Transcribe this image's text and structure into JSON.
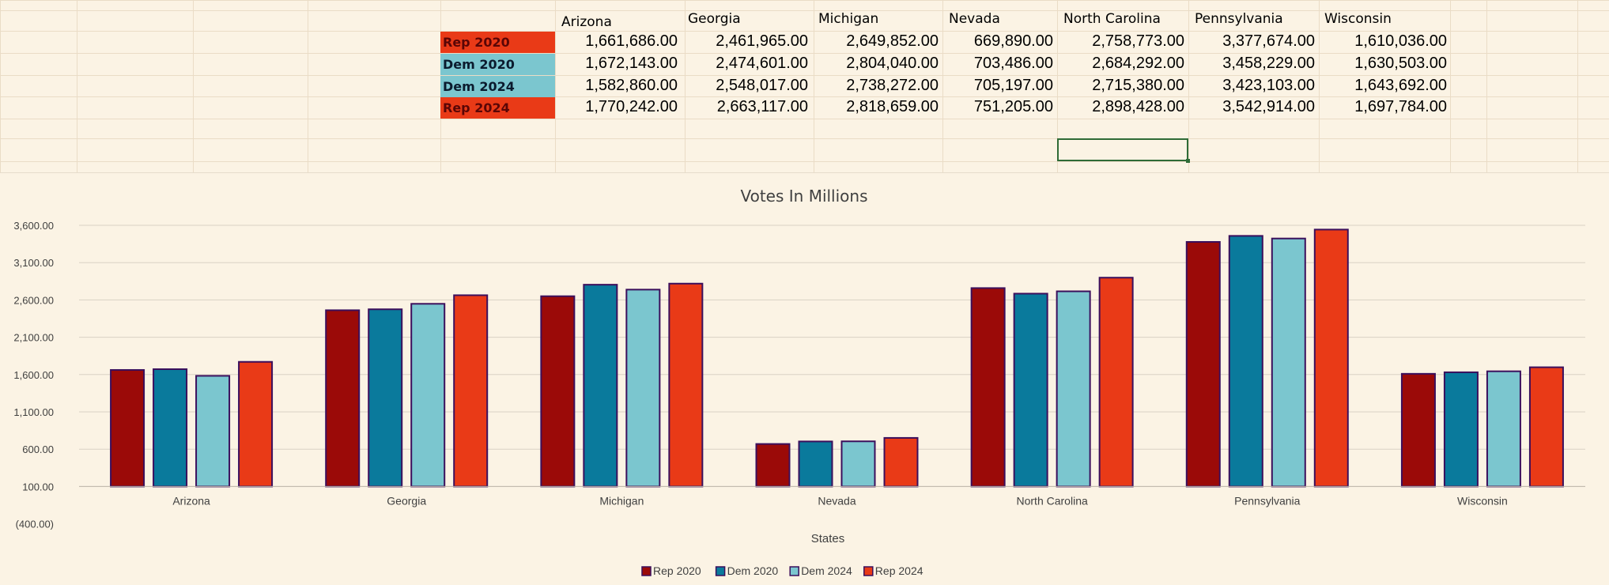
{
  "sheet": {
    "headers": [
      "Arizona",
      "Georgia",
      "Michigan",
      "Nevada",
      "North Carolina",
      "Pennsylvania",
      "Wisconsin"
    ],
    "rows": [
      {
        "label": "Rep 2020",
        "values": [
          "1,661,686.00",
          "2,461,965.00",
          "2,649,852.00",
          "669,890.00",
          "2,758,773.00",
          "3,377,674.00",
          "1,610,036.00"
        ]
      },
      {
        "label": "Dem 2020",
        "values": [
          "1,672,143.00",
          "2,474,601.00",
          "2,804,040.00",
          "703,486.00",
          "2,684,292.00",
          "3,458,229.00",
          "1,630,503.00"
        ]
      },
      {
        "label": "Dem 2024",
        "values": [
          "1,582,860.00",
          "2,548,017.00",
          "2,738,272.00",
          "705,197.00",
          "2,715,380.00",
          "3,423,103.00",
          "1,643,692.00"
        ]
      },
      {
        "label": "Rep 2024",
        "values": [
          "1,770,242.00",
          "2,663,117.00",
          "2,818,659.00",
          "751,205.00",
          "2,898,428.00",
          "3,542,914.00",
          "1,697,784.00"
        ]
      }
    ]
  },
  "colors": {
    "rep2020": "#9b0a08",
    "dem2020": "#0a7a9c",
    "dem2024": "#7bc6cf",
    "rep2024": "#e93a17",
    "row_rep_fill": "#e93a17",
    "row_dem_fill": "#7bc6cf",
    "bar_outline": "#3b0f5c",
    "selection": "#2f6b36"
  },
  "chart_data": {
    "type": "bar",
    "title": "Votes In Millions",
    "xlabel": "States",
    "ylabel": "",
    "categories": [
      "Arizona",
      "Georgia",
      "Michigan",
      "Nevada",
      "North Carolina",
      "Pennsylvania",
      "Wisconsin"
    ],
    "series": [
      {
        "name": "Rep 2020",
        "values": [
          1661.686,
          2461.965,
          2649.852,
          669.89,
          2758.773,
          3377.674,
          1610.036
        ]
      },
      {
        "name": "Dem 2020",
        "values": [
          1672.143,
          2474.601,
          2804.04,
          703.486,
          2684.292,
          3458.229,
          1630.503
        ]
      },
      {
        "name": "Dem 2024",
        "values": [
          1582.86,
          2548.017,
          2738.272,
          705.197,
          2715.38,
          3423.103,
          1643.692
        ]
      },
      {
        "name": "Rep 2024",
        "values": [
          1770.242,
          2663.117,
          2818.659,
          751.205,
          2898.428,
          3542.914,
          1697.784
        ]
      }
    ],
    "yticks": [
      "3,600.00",
      "3,100.00",
      "2,600.00",
      "2,100.00",
      "1,600.00",
      "1,100.00",
      "600.00",
      "100.00",
      "(400.00)"
    ],
    "ylim": [
      -400,
      3600
    ],
    "grid": true,
    "legend_position": "bottom"
  }
}
